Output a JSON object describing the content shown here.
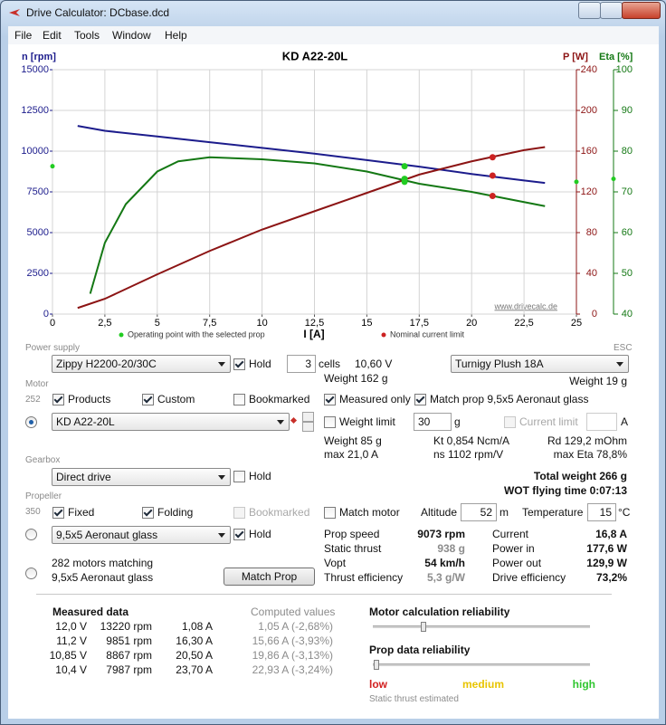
{
  "window": {
    "title": "Drive Calculator: DCbase.dcd",
    "menu": [
      "File",
      "Edit",
      "Tools",
      "Window",
      "Help"
    ]
  },
  "chart_data": {
    "type": "line",
    "title": "KD A22-20L",
    "x_label": "I [A]",
    "y_label": "n [rpm]",
    "y2_label": "P [W]",
    "y3_label": "Eta [%]",
    "y_color": "#1c1c8c",
    "y2_color": "#8c1414",
    "y3_color": "#147814",
    "watermark": "www.drivecalc.de",
    "grid": true,
    "xlim": [
      0,
      25
    ],
    "xticks": [
      0,
      {
        "value": 2.5,
        "label": "2,5"
      },
      5,
      {
        "value": 7.5,
        "label": "7,5"
      },
      10,
      {
        "value": 12.5,
        "label": "12,5"
      },
      15,
      {
        "value": 17.5,
        "label": "17,5"
      },
      20,
      {
        "value": 22.5,
        "label": "22,5"
      },
      25
    ],
    "ylim": [
      0,
      15000
    ],
    "yticks": [
      0,
      2500,
      5000,
      7500,
      10000,
      12500,
      15000
    ],
    "y2lim": [
      0,
      240
    ],
    "y2ticks": [
      0,
      40,
      80,
      120,
      160,
      200,
      240
    ],
    "y3lim": [
      40,
      100
    ],
    "y3ticks": [
      40,
      50,
      60,
      70,
      80,
      90,
      100
    ],
    "series": [
      {
        "color": "#1c1c8c",
        "axis": "y",
        "x": [
          1.2,
          2.5,
          5,
          7.5,
          10,
          12.5,
          15,
          17.5,
          20,
          22.5,
          23.5
        ],
        "values": [
          11550,
          11250,
          10900,
          10550,
          10200,
          9850,
          9450,
          9050,
          8600,
          8200,
          8050
        ]
      },
      {
        "color": "#8c1414",
        "axis": "y2",
        "x": [
          1.2,
          2.5,
          5,
          7.5,
          10,
          12.5,
          15,
          17.5,
          20,
          22.5,
          23.5
        ],
        "values": [
          6,
          15,
          39,
          62,
          83,
          101,
          119,
          137,
          150,
          161,
          164
        ]
      },
      {
        "color": "#147814",
        "axis": "y3",
        "x": [
          1.8,
          2.5,
          3.5,
          5,
          6,
          7.5,
          10,
          12.5,
          15,
          17.5,
          20,
          22.5,
          23.5
        ],
        "values": [
          45,
          57.5,
          67,
          75,
          77.5,
          78.5,
          78,
          77,
          75,
          72,
          70,
          67.5,
          66.5
        ]
      }
    ],
    "points": [
      {
        "name": "Operating point with the selected prop",
        "color": "#22cc22",
        "x": 16.8,
        "values": [
          9073,
          129.9,
          73.2
        ],
        "axes": [
          "y",
          "y2",
          "y3"
        ],
        "axis_markers": true
      },
      {
        "name": "Nominal current limit",
        "color": "#cc2222",
        "x": 21,
        "values": [
          8500,
          154,
          69
        ],
        "axes": [
          "y",
          "y2",
          "y3"
        ],
        "axis_markers": false
      }
    ]
  },
  "power_supply": {
    "label": "Power supply",
    "battery": "Zippy H2200-20/30C",
    "hold": {
      "label": "Hold",
      "checked": true
    },
    "cells": "3",
    "cells_unit": "cells",
    "voltage": "10,60 V",
    "weight": "Weight 162 g"
  },
  "esc": {
    "label": "ESC",
    "name": "Turnigy Plush 18A",
    "weight": "Weight 19 g"
  },
  "motor": {
    "label": "Motor",
    "count": "252",
    "products": {
      "label": "Products",
      "checked": true
    },
    "custom": {
      "label": "Custom",
      "checked": true
    },
    "bookmarked": {
      "label": "Bookmarked",
      "checked": false
    },
    "measured_only": {
      "label": "Measured only",
      "checked": true
    },
    "match_prop": {
      "label": "Match prop 9,5x5 Aeronaut glass",
      "checked": true
    },
    "selected": true,
    "name": "KD A22-20L",
    "weight_limit": {
      "label": "Weight limit",
      "checked": false
    },
    "weight_limit_value": "30",
    "weight_limit_unit": "g",
    "current_limit": {
      "label": "Current limit",
      "checked": false,
      "enabled": false
    },
    "current_limit_unit": "A",
    "specs": [
      "Weight 85 g",
      "Kt 0,854 Ncm/A",
      "Rd 129,2 mOhm",
      "max 21,0 A",
      "ns 1102 rpm/V",
      "max Eta 78,8%"
    ]
  },
  "gearbox": {
    "label": "Gearbox",
    "name": "Direct drive",
    "hold": {
      "label": "Hold",
      "checked": false
    }
  },
  "totals": {
    "total_weight": "Total weight 266 g",
    "flying_time": "WOT flying time 0:07:13"
  },
  "propeller": {
    "label": "Propeller",
    "count": "350",
    "fixed": {
      "label": "Fixed",
      "checked": true
    },
    "folding": {
      "label": "Folding",
      "checked": true
    },
    "bookmarked": {
      "label": "Bookmarked",
      "checked": false,
      "enabled": false
    },
    "match_motor": {
      "label": "Match motor",
      "checked": false
    },
    "altitude_label": "Altitude",
    "altitude": "52",
    "altitude_unit": "m",
    "temperature_label": "Temperature",
    "temperature": "15",
    "temperature_unit": "°C",
    "selected": false,
    "name": "9,5x5 Aeronaut glass",
    "hold": {
      "label": "Hold",
      "checked": true
    }
  },
  "results": {
    "left": [
      [
        "Prop speed",
        "9073 rpm"
      ],
      [
        "Static thrust",
        "938 g"
      ],
      [
        "Vopt",
        "54 km/h"
      ],
      [
        "Thrust efficiency",
        "5,3 g/W"
      ]
    ],
    "right": [
      [
        "Current",
        "16,8 A"
      ],
      [
        "Power in",
        "177,6 W"
      ],
      [
        "Power out",
        "129,9 W"
      ],
      [
        "Drive efficiency",
        "73,2%"
      ]
    ]
  },
  "matching": {
    "count": "282 motors matching",
    "prop": "9,5x5 Aeronaut glass",
    "selected": false,
    "button": "Match Prop"
  },
  "measured": {
    "title": "Measured data",
    "computed_title": "Computed values",
    "rows": [
      [
        "12,0 V",
        "13220 rpm",
        "1,08 A",
        "1,05 A (-2,68%)"
      ],
      [
        "11,2 V",
        "9851 rpm",
        "16,30 A",
        "15,66 A (-3,93%)"
      ],
      [
        "10,85 V",
        "8867 rpm",
        "20,50 A",
        "19,86 A (-3,13%)"
      ],
      [
        "10,4 V",
        "7987 rpm",
        "23,70 A",
        "22,93 A (-3,24%)"
      ]
    ]
  },
  "reliability": {
    "motor": "Motor calculation reliability",
    "prop": "Prop data reliability",
    "low": "low",
    "medium": "medium",
    "high": "high",
    "note": "Static thrust estimated"
  }
}
